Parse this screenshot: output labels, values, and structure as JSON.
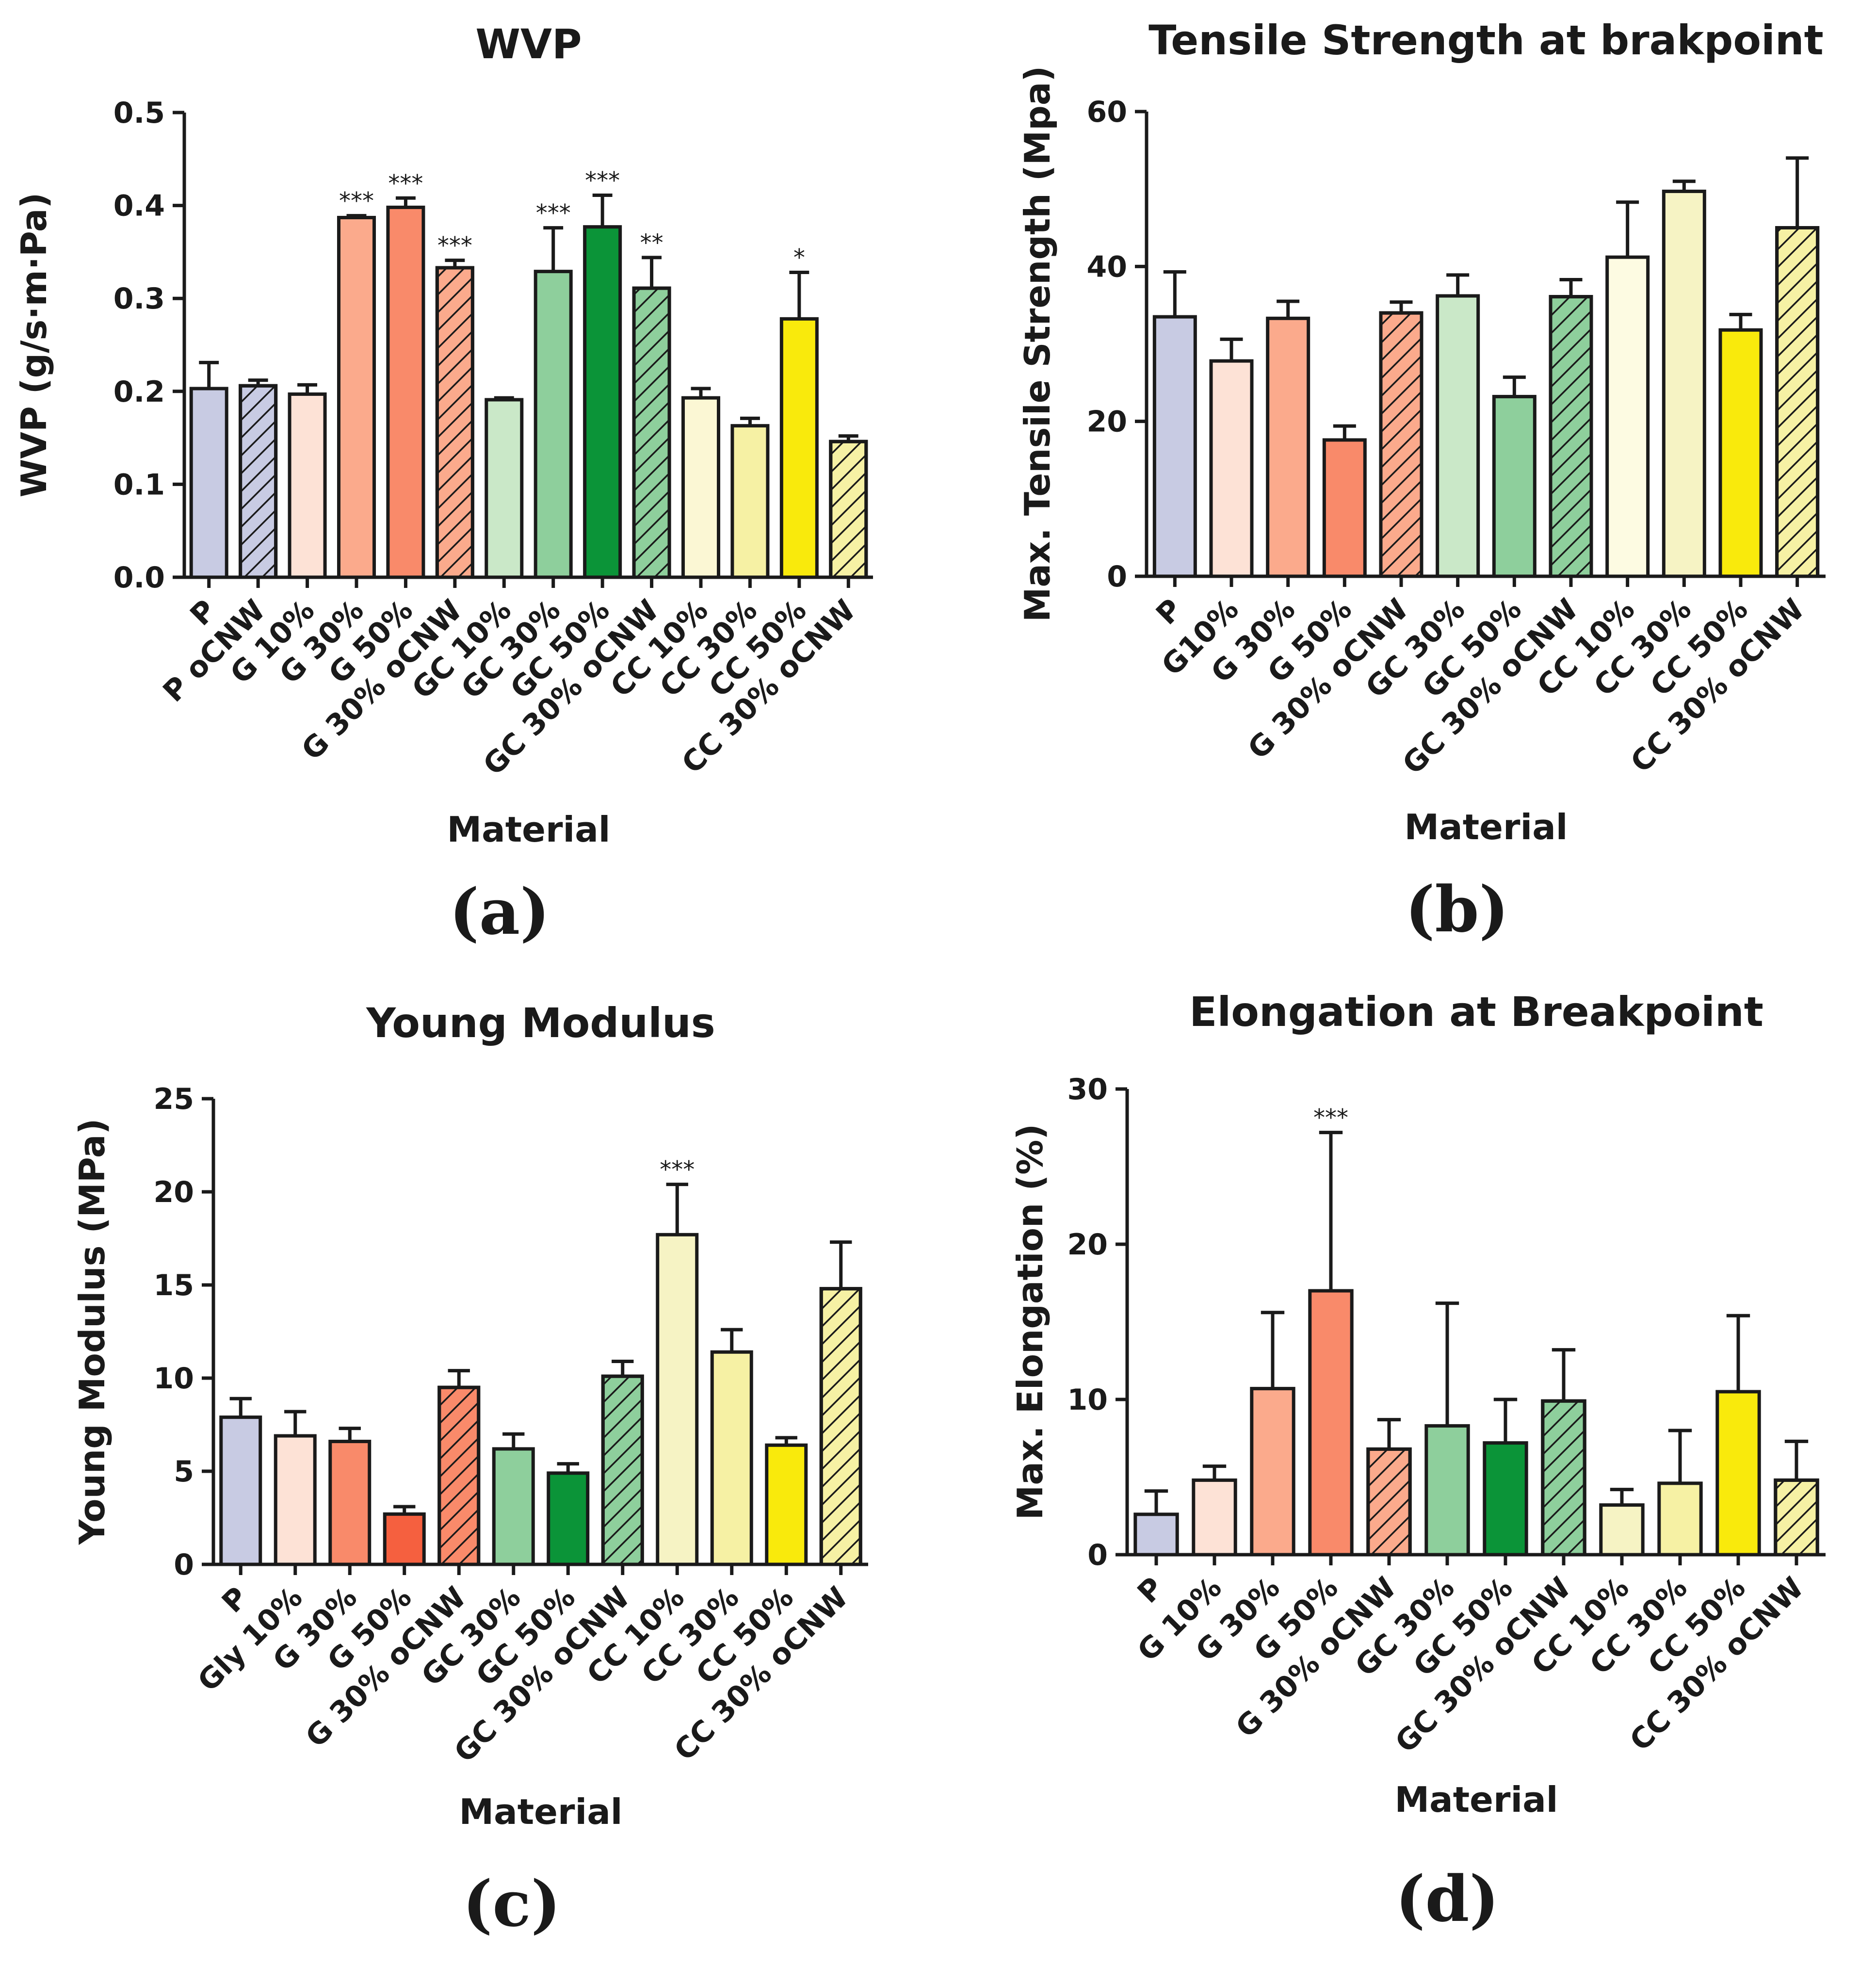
{
  "chart_data": [
    {
      "type": "bar",
      "panel_label": "(a)",
      "title": "WVP",
      "xlabel": "Material",
      "ylabel": "WVP (g/s·m·Pa)",
      "ylim": [
        0,
        0.5
      ],
      "yticks": [
        0.0,
        0.1,
        0.2,
        0.3,
        0.4,
        0.5
      ],
      "ytick_labels": [
        "0.0",
        "0.1",
        "0.2",
        "0.3",
        "0.4",
        "0.5"
      ],
      "categories": [
        "P",
        "P oCNW",
        "G 10%",
        "G 30%",
        "G 50%",
        "G 30% oCNW",
        "GC 10%",
        "GC 30%",
        "GC 50%",
        "GC 30% oCNW",
        "CC 10%",
        "CC 30%",
        "CC 50%",
        "CC 30% oCNW"
      ],
      "values": [
        0.203,
        0.206,
        0.197,
        0.387,
        0.398,
        0.333,
        0.191,
        0.329,
        0.377,
        0.311,
        0.193,
        0.163,
        0.278,
        0.146
      ],
      "errors": [
        0.028,
        0.006,
        0.01,
        0.002,
        0.01,
        0.008,
        0.002,
        0.047,
        0.034,
        0.033,
        0.01,
        0.008,
        0.05,
        0.006
      ],
      "significance": [
        "",
        "",
        "",
        "***",
        "***",
        "***",
        "",
        "***",
        "***",
        "**",
        "",
        "",
        "*",
        ""
      ],
      "colors": [
        "#c8cbe3",
        "#c8cbe3",
        "#fde2d6",
        "#fbaa8c",
        "#f98a6a",
        "#fbaa8c",
        "#cae8c8",
        "#8ecf9c",
        "#0b9438",
        "#8ecf9c",
        "#fbf7d4",
        "#f6f1a4",
        "#f9ea0c",
        "#f6f1a4"
      ],
      "hatched": [
        false,
        true,
        false,
        false,
        false,
        true,
        false,
        false,
        false,
        true,
        false,
        false,
        false,
        true
      ]
    },
    {
      "type": "bar",
      "panel_label": "(b)",
      "title": "Tensile Strength at brakpoint",
      "xlabel": "Material",
      "ylabel": "Max. Tensile Strength (Mpa)",
      "ylim": [
        0,
        60
      ],
      "yticks": [
        0,
        20,
        40,
        60
      ],
      "ytick_labels": [
        "0",
        "20",
        "40",
        "60"
      ],
      "categories": [
        "P",
        "G10%",
        "G 30%",
        "G 50%",
        "G 30% oCNW",
        "GC 30%",
        "GC 50%",
        "GC 30% oCNW",
        "CC 10%",
        "CC 30%",
        "CC 50%",
        "CC 30% oCNW"
      ],
      "values": [
        33.5,
        27.8,
        33.3,
        17.6,
        34.0,
        36.2,
        23.2,
        36.1,
        41.2,
        49.7,
        31.8,
        45.0
      ],
      "errors": [
        5.8,
        2.8,
        2.2,
        1.8,
        1.4,
        2.7,
        2.5,
        2.2,
        7.1,
        1.3,
        2.0,
        9.0
      ],
      "significance": [
        "",
        "",
        "",
        "",
        "",
        "",
        "",
        "",
        "",
        "",
        "",
        ""
      ],
      "colors": [
        "#c8cbe3",
        "#fde2d6",
        "#fbaa8c",
        "#f98a6a",
        "#fbaa8c",
        "#cae8c8",
        "#8ecf9c",
        "#8ecf9c",
        "#fdfbe2",
        "#f6f3c4",
        "#f9ea0c",
        "#f6f1a4"
      ],
      "hatched": [
        false,
        false,
        false,
        false,
        true,
        false,
        false,
        true,
        false,
        false,
        false,
        true
      ]
    },
    {
      "type": "bar",
      "panel_label": "(c)",
      "title": "Young Modulus",
      "xlabel": "Material",
      "ylabel": "Young Modulus (MPa)",
      "ylim": [
        0,
        25
      ],
      "yticks": [
        0,
        5,
        10,
        15,
        20,
        25
      ],
      "ytick_labels": [
        "0",
        "5",
        "10",
        "15",
        "20",
        "25"
      ],
      "categories": [
        "P",
        "Gly 10%",
        "G 30%",
        "G 50%",
        "G 30% oCNW",
        "GC 30%",
        "GC 50%",
        "GC 30% oCNW",
        "CC 10%",
        "CC 30%",
        "CC 50%",
        "CC 30% oCNW"
      ],
      "values": [
        7.9,
        6.9,
        6.6,
        2.7,
        9.5,
        6.2,
        4.9,
        10.1,
        17.7,
        11.4,
        6.4,
        14.8
      ],
      "errors": [
        1.0,
        1.3,
        0.7,
        0.4,
        0.9,
        0.8,
        0.5,
        0.8,
        2.7,
        1.2,
        0.4,
        2.5
      ],
      "significance": [
        "",
        "",
        "",
        "",
        "",
        "",
        "",
        "",
        "***",
        "",
        "",
        ""
      ],
      "colors": [
        "#c8cbe3",
        "#fde2d6",
        "#f98a6a",
        "#f5603f",
        "#f98a6a",
        "#8ecf9c",
        "#0b9438",
        "#8ecf9c",
        "#f6f3c4",
        "#f6f1a4",
        "#f9ea0c",
        "#f6f1a4"
      ],
      "hatched": [
        false,
        false,
        false,
        false,
        true,
        false,
        false,
        true,
        false,
        false,
        false,
        true
      ]
    },
    {
      "type": "bar",
      "panel_label": "(d)",
      "title": "Elongation at Breakpoint",
      "xlabel": "Material",
      "ylabel": "Max. Elongation  (%)",
      "ylim": [
        0,
        30
      ],
      "yticks": [
        0,
        10,
        20,
        30
      ],
      "ytick_labels": [
        "0",
        "10",
        "20",
        "30"
      ],
      "categories": [
        "P",
        "G 10%",
        "G 30%",
        "G 50%",
        "G 30% oCNW",
        "GC 30%",
        "GC 50%",
        "GC 30% oCNW",
        "CC 10%",
        "CC 30%",
        "CC 50%",
        "CC 30% oCNW"
      ],
      "values": [
        2.6,
        4.8,
        10.7,
        17.0,
        6.8,
        8.3,
        7.2,
        9.9,
        3.2,
        4.6,
        10.5,
        4.8
      ],
      "errors": [
        1.5,
        0.9,
        4.9,
        10.2,
        1.9,
        7.9,
        2.8,
        3.3,
        1.0,
        3.4,
        4.9,
        2.5
      ],
      "significance": [
        "",
        "",
        "",
        "***",
        "",
        "",
        "",
        "",
        "",
        "",
        "",
        ""
      ],
      "colors": [
        "#c8cbe3",
        "#fde2d6",
        "#fbaa8c",
        "#f98a6a",
        "#fbaa8c",
        "#8ecf9c",
        "#0b9438",
        "#8ecf9c",
        "#f6f3c4",
        "#f6f1a4",
        "#f9ea0c",
        "#f6f1a4"
      ],
      "hatched": [
        false,
        false,
        false,
        false,
        true,
        false,
        false,
        true,
        false,
        false,
        false,
        true
      ]
    }
  ]
}
